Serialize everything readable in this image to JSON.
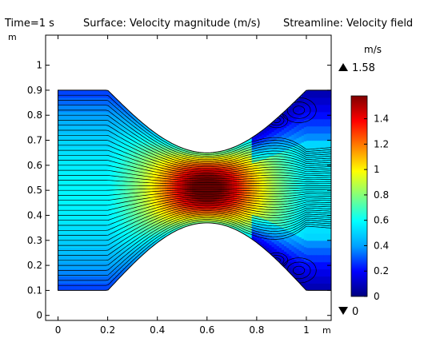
{
  "header": {
    "time": "Time=1 s",
    "surface": "Surface: Velocity magnitude (m/s)",
    "streamline": "Streamline: Velocity field"
  },
  "chart_data": {
    "type": "heatmap",
    "title": "Time=1 s  Surface: Velocity magnitude (m/s)  Streamline: Velocity field",
    "x_unit": "m",
    "y_unit": "m",
    "xlim": [
      -0.05,
      1.1
    ],
    "ylim": [
      -0.02,
      1.12
    ],
    "x_ticks": [
      0,
      0.2,
      0.4,
      0.6,
      0.8,
      1
    ],
    "x_tick_labels": [
      "0",
      "0.2",
      "0.4",
      "0.6",
      "0.8",
      "1"
    ],
    "y_ticks": [
      0,
      0.1,
      0.2,
      0.3,
      0.4,
      0.5,
      0.6,
      0.7,
      0.8,
      0.9,
      1
    ],
    "y_tick_labels": [
      "0",
      "0.1",
      "0.2",
      "0.3",
      "0.4",
      "0.5",
      "0.6",
      "0.7",
      "0.8",
      "0.9",
      "1"
    ],
    "domain": {
      "inlet_x": 0,
      "outlet_x": 1.1,
      "y_bottom": 0.1,
      "y_top": 0.9,
      "throat_x": 0.6,
      "throat_y_bottom": 0.37,
      "throat_y_top": 0.65,
      "left_taper_start_x": 0.2,
      "right_taper_end_x": 1.0
    },
    "colorbar": {
      "unit": "m/s",
      "min": 0,
      "max": 1.58,
      "max_label": "1.58",
      "min_label": "0",
      "ticks": [
        0,
        0.2,
        0.4,
        0.6,
        0.8,
        1,
        1.2,
        1.4
      ],
      "tick_labels": [
        "0",
        "0.2",
        "0.4",
        "0.6",
        "0.8",
        "1",
        "1.2",
        "1.4"
      ],
      "colors": [
        "#00007f",
        "#0000ff",
        "#00a0ff",
        "#00ffff",
        "#7fff7f",
        "#ffff00",
        "#ff8000",
        "#ff0000",
        "#7f0000"
      ]
    },
    "streamline_count": 40,
    "grid": false
  }
}
